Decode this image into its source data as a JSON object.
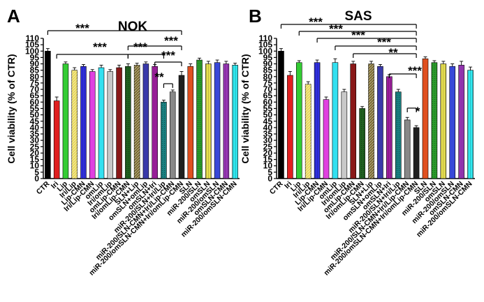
{
  "panels": {
    "A": {
      "letter": "A"
    },
    "B": {
      "letter": "B"
    }
  },
  "colors": {
    "CTR": "#000000",
    "Iri": "#e02020",
    "Lip": "#33cc33",
    "Iri/Lip": "#e8d85a",
    "Lip-CMN": "#3030e0",
    "Iri/Lip-CMN": "#e040e0",
    "omLip": "#33e0f0",
    "Iri/omLip": "#c8c8c8",
    "omLip-CMN": "#8a1818",
    "Iri/omLip-CMN": "#206020",
    "SLN+Lip": "#7a6a30",
    "omSLN+omLip": "#3a3aaa",
    "omSLN+Iri": "#a020a0",
    "miR-200/SLN+Iri/Lip": "#1a8080",
    "miR-200/SLN-CMN+Iri/Lip-CMN": "#888888",
    "miR-200/omSLN-CMN+Iri/omLip-CMN": "#202020",
    "SLN": "#e05020",
    "miR-200/SLN": "#2a9a2a",
    "omSLN": "#e8e050",
    "miR-200/omSLN": "#3848d8",
    "omSLN-CMN": "#9a38b8",
    "miR-200/omSLN-CMN": "#30e8f0"
  },
  "chart_data": [
    {
      "type": "bar",
      "title": "NOK",
      "xlabel": "",
      "ylabel": "Cell viability (% of CTR)",
      "ylim": [
        0,
        110
      ],
      "yticks": [
        0,
        5,
        10,
        15,
        20,
        25,
        30,
        35,
        40,
        45,
        50,
        55,
        60,
        65,
        70,
        75,
        80,
        85,
        90,
        95,
        100,
        105,
        110
      ],
      "grid": false,
      "categories": [
        "CTR",
        "Iri",
        "Lip",
        "Iri/Lip",
        "Lip-CMN",
        "Iri/Lip-CMN",
        "omLip",
        "Iri/omLip",
        "omLip-CMN",
        "Iri/omLip-CMN",
        "SLN+Lip",
        "omSLN+omLip",
        "omSLN+Iri",
        "miR-200/SLN+Iri/Lip",
        "miR-200/SLN-CMN+Iri/Lip-CMN",
        "miR-200/omSLN-CMN+Iri/omLip-CMN",
        "SLN",
        "miR-200/SLN",
        "omSLN",
        "miR-200/omSLN",
        "omSLN-CMN",
        "miR-200/omSLN-CMN"
      ],
      "values": [
        100,
        61,
        90,
        85,
        88,
        84,
        87,
        84,
        87,
        88,
        89,
        90,
        88,
        60,
        68,
        81,
        88,
        93,
        90,
        91,
        90,
        89
      ],
      "errors": [
        2,
        3,
        1.5,
        2,
        1.5,
        1.5,
        2,
        1.5,
        2,
        2,
        1.5,
        1.5,
        1.5,
        1.5,
        1.5,
        3,
        2,
        1.5,
        2,
        2,
        2,
        1.5
      ],
      "annotations": [
        "***",
        "***",
        "***",
        "***",
        "***",
        "**"
      ]
    },
    {
      "type": "bar",
      "title": "SAS",
      "xlabel": "",
      "ylabel": "Cell viability (% of CTR)",
      "ylim": [
        0,
        110
      ],
      "yticks": [
        0,
        5,
        10,
        15,
        20,
        25,
        30,
        35,
        40,
        45,
        50,
        55,
        60,
        65,
        70,
        75,
        80,
        85,
        90,
        95,
        100,
        105,
        110
      ],
      "grid": false,
      "categories": [
        "CTR",
        "Iri",
        "Lip",
        "Iri/Lip",
        "Lip-CMN",
        "Iri/Lip-CMN",
        "omLip",
        "Iri/omLip",
        "omLip-CMN",
        "Iri/omLip-CMN",
        "SLN+Lip",
        "omSLN+omLip",
        "omSLN+Iri",
        "miR-200/SLN+Iri/Lip",
        "miR-200/SLN-CMN+Iri/Lip-CMN",
        "miR-200/omSLN-CMN+Iri/omLip-CMN",
        "SLN",
        "miR-200/SLN",
        "omSLN",
        "miR-200/omSLN",
        "omSLN-CMN",
        "miR-200/omSLN-CMN"
      ],
      "values": [
        100,
        81,
        91,
        74,
        91,
        62,
        91,
        68,
        90,
        55,
        90,
        88,
        80,
        68,
        46,
        40,
        94,
        91,
        90,
        88,
        89,
        85
      ],
      "errors": [
        2,
        3,
        1.5,
        2,
        2,
        2,
        3,
        2,
        2,
        1.5,
        2,
        1.5,
        1.5,
        2,
        2,
        1.5,
        1.5,
        1.5,
        2,
        2,
        3,
        2.5
      ],
      "annotations": [
        "***",
        "***",
        "***",
        "***",
        "**",
        "***",
        "*"
      ]
    }
  ]
}
